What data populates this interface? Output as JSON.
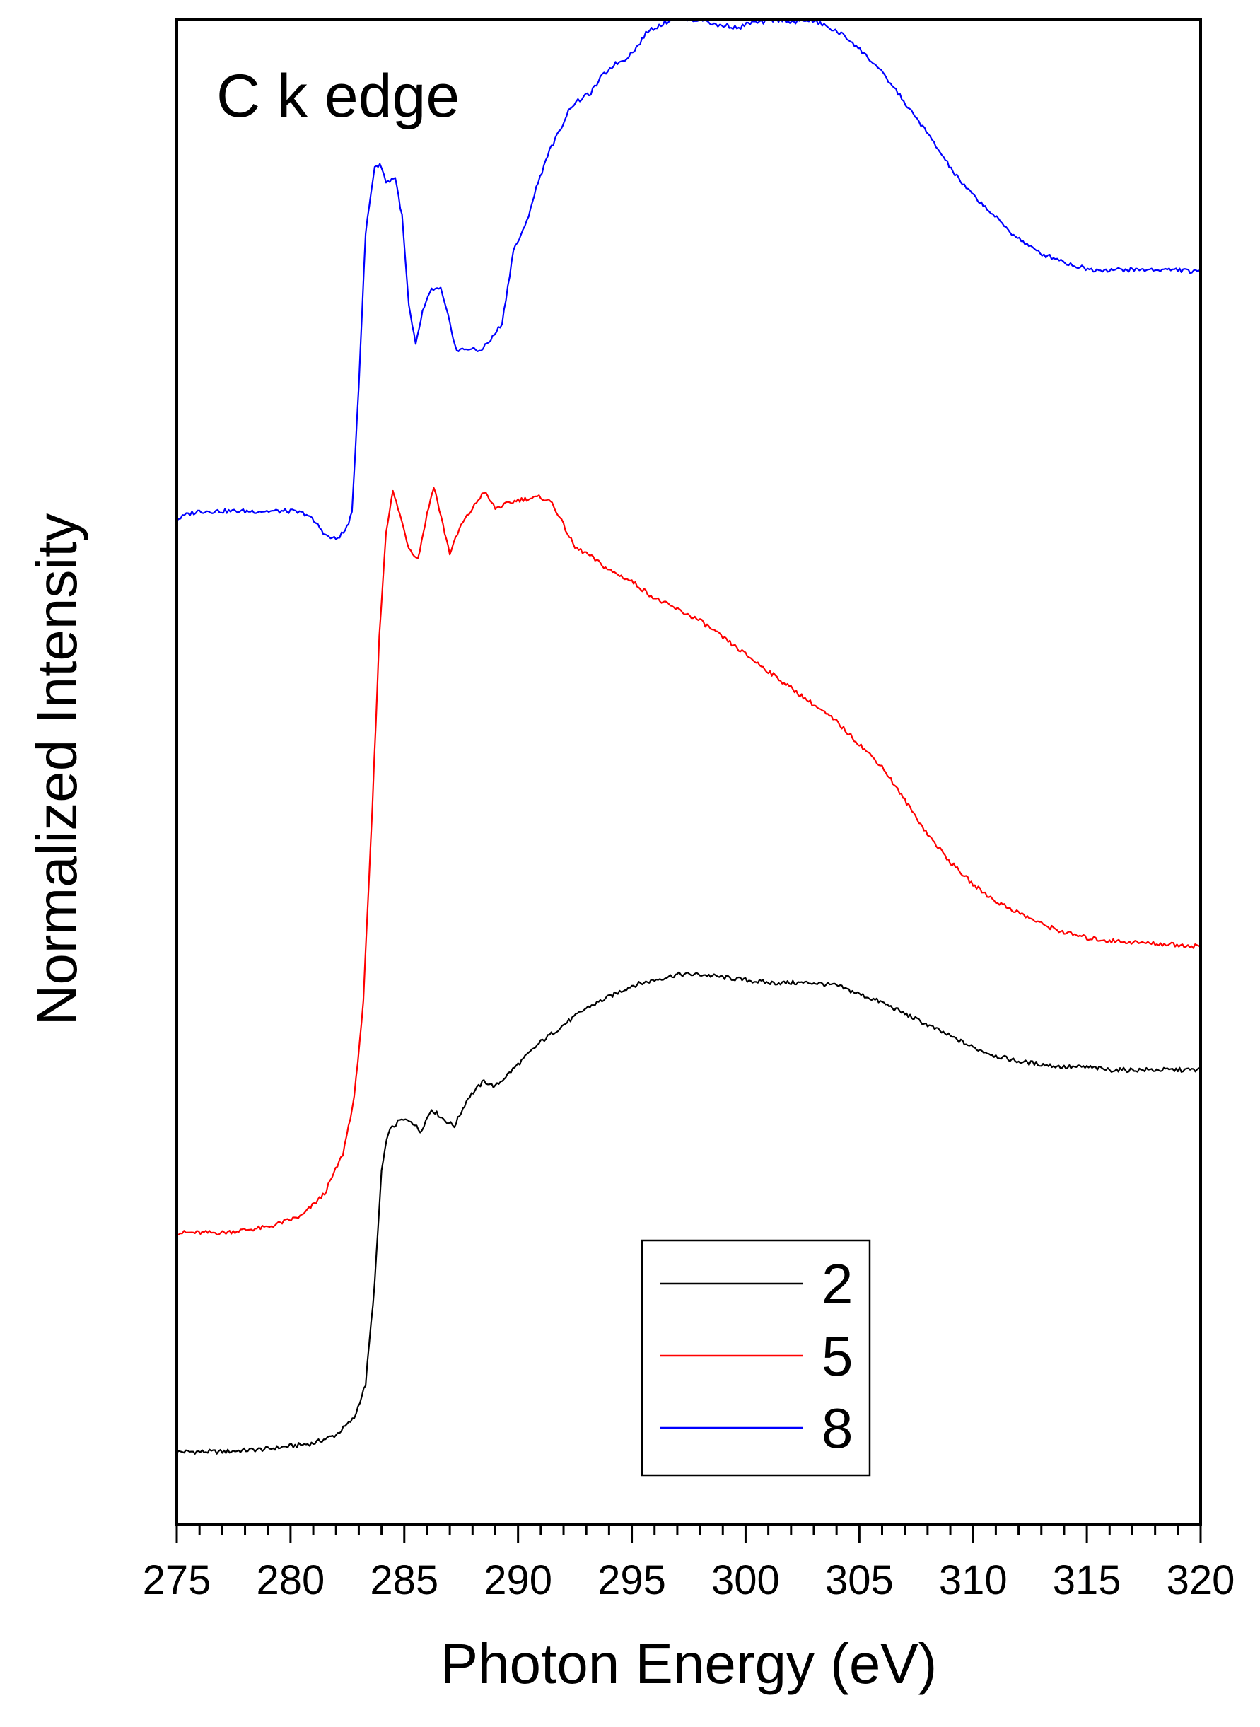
{
  "chart_data": {
    "type": "line",
    "annotation": "C k edge",
    "xlabel": "Photon Energy (eV)",
    "ylabel": "Normalized Intensity",
    "xlim": [
      275,
      320
    ],
    "ylim": [
      -0.08,
      2.6
    ],
    "x_ticks": [
      "275",
      "280",
      "285",
      "290",
      "295",
      "300",
      "305",
      "310",
      "315",
      "320"
    ],
    "y_ticks_shown": false,
    "grid": false,
    "legend_position": "bottom-right",
    "series": [
      {
        "name": "2",
        "color": "#000000",
        "points": [
          [
            275.0,
            0.05
          ],
          [
            277.0,
            0.05
          ],
          [
            279.0,
            0.055
          ],
          [
            281.0,
            0.065
          ],
          [
            282.0,
            0.08
          ],
          [
            282.8,
            0.11
          ],
          [
            283.3,
            0.17
          ],
          [
            283.7,
            0.35
          ],
          [
            284.0,
            0.55
          ],
          [
            284.3,
            0.62
          ],
          [
            284.8,
            0.64
          ],
          [
            285.3,
            0.64
          ],
          [
            285.7,
            0.62
          ],
          [
            286.2,
            0.66
          ],
          [
            286.8,
            0.64
          ],
          [
            287.2,
            0.63
          ],
          [
            287.8,
            0.68
          ],
          [
            288.5,
            0.71
          ],
          [
            289.0,
            0.7
          ],
          [
            290.0,
            0.74
          ],
          [
            291.0,
            0.78
          ],
          [
            292.0,
            0.81
          ],
          [
            293.0,
            0.84
          ],
          [
            294.0,
            0.86
          ],
          [
            295.0,
            0.88
          ],
          [
            296.0,
            0.89
          ],
          [
            297.0,
            0.9
          ],
          [
            298.0,
            0.9
          ],
          [
            299.0,
            0.895
          ],
          [
            300.0,
            0.89
          ],
          [
            301.0,
            0.885
          ],
          [
            302.0,
            0.885
          ],
          [
            303.0,
            0.885
          ],
          [
            304.0,
            0.88
          ],
          [
            305.0,
            0.865
          ],
          [
            306.0,
            0.85
          ],
          [
            307.0,
            0.83
          ],
          [
            308.0,
            0.81
          ],
          [
            309.0,
            0.79
          ],
          [
            310.0,
            0.77
          ],
          [
            311.0,
            0.755
          ],
          [
            312.0,
            0.745
          ],
          [
            313.0,
            0.74
          ],
          [
            314.0,
            0.735
          ],
          [
            315.0,
            0.735
          ],
          [
            316.0,
            0.73
          ],
          [
            317.0,
            0.73
          ],
          [
            318.0,
            0.73
          ],
          [
            319.0,
            0.73
          ],
          [
            320.0,
            0.73
          ]
        ]
      },
      {
        "name": "5",
        "color": "#ff0000",
        "points": [
          [
            275.0,
            0.44
          ],
          [
            277.0,
            0.44
          ],
          [
            279.0,
            0.45
          ],
          [
            280.5,
            0.47
          ],
          [
            281.5,
            0.51
          ],
          [
            282.3,
            0.58
          ],
          [
            282.8,
            0.68
          ],
          [
            283.2,
            0.85
          ],
          [
            283.6,
            1.2
          ],
          [
            283.9,
            1.5
          ],
          [
            284.2,
            1.69
          ],
          [
            284.5,
            1.76
          ],
          [
            284.8,
            1.72
          ],
          [
            285.2,
            1.66
          ],
          [
            285.6,
            1.64
          ],
          [
            286.0,
            1.72
          ],
          [
            286.3,
            1.77
          ],
          [
            286.7,
            1.7
          ],
          [
            287.0,
            1.65
          ],
          [
            287.5,
            1.7
          ],
          [
            288.0,
            1.73
          ],
          [
            288.5,
            1.76
          ],
          [
            289.0,
            1.73
          ],
          [
            290.0,
            1.745
          ],
          [
            291.0,
            1.75
          ],
          [
            291.5,
            1.74
          ],
          [
            292.0,
            1.7
          ],
          [
            292.5,
            1.66
          ],
          [
            293.0,
            1.65
          ],
          [
            294.0,
            1.62
          ],
          [
            295.0,
            1.6
          ],
          [
            296.0,
            1.57
          ],
          [
            297.0,
            1.55
          ],
          [
            298.0,
            1.53
          ],
          [
            299.0,
            1.5
          ],
          [
            300.0,
            1.47
          ],
          [
            301.0,
            1.44
          ],
          [
            302.0,
            1.41
          ],
          [
            303.0,
            1.38
          ],
          [
            304.0,
            1.35
          ],
          [
            305.0,
            1.31
          ],
          [
            306.0,
            1.27
          ],
          [
            307.0,
            1.21
          ],
          [
            308.0,
            1.15
          ],
          [
            309.0,
            1.1
          ],
          [
            310.0,
            1.06
          ],
          [
            311.0,
            1.03
          ],
          [
            312.0,
            1.01
          ],
          [
            313.0,
            0.99
          ],
          [
            314.0,
            0.975
          ],
          [
            315.0,
            0.965
          ],
          [
            316.0,
            0.96
          ],
          [
            318.0,
            0.955
          ],
          [
            320.0,
            0.95
          ]
        ]
      },
      {
        "name": "8",
        "color": "#0000ff",
        "points": [
          [
            275.0,
            1.71
          ],
          [
            275.5,
            1.72
          ],
          [
            276.0,
            1.725
          ],
          [
            278.0,
            1.725
          ],
          [
            280.0,
            1.725
          ],
          [
            280.7,
            1.72
          ],
          [
            281.2,
            1.7
          ],
          [
            281.6,
            1.68
          ],
          [
            282.0,
            1.675
          ],
          [
            282.4,
            1.69
          ],
          [
            282.7,
            1.72
          ],
          [
            283.0,
            1.95
          ],
          [
            283.3,
            2.22
          ],
          [
            283.7,
            2.34
          ],
          [
            284.0,
            2.34
          ],
          [
            284.2,
            2.31
          ],
          [
            284.6,
            2.32
          ],
          [
            284.9,
            2.25
          ],
          [
            285.2,
            2.09
          ],
          [
            285.5,
            2.02
          ],
          [
            285.8,
            2.08
          ],
          [
            286.2,
            2.12
          ],
          [
            286.6,
            2.12
          ],
          [
            287.0,
            2.06
          ],
          [
            287.3,
            2.01
          ],
          [
            287.8,
            2.015
          ],
          [
            288.3,
            2.01
          ],
          [
            288.8,
            2.03
          ],
          [
            289.3,
            2.06
          ],
          [
            289.8,
            2.19
          ],
          [
            290.3,
            2.23
          ],
          [
            290.8,
            2.3
          ],
          [
            291.3,
            2.36
          ],
          [
            291.8,
            2.4
          ],
          [
            292.3,
            2.445
          ],
          [
            292.8,
            2.46
          ],
          [
            293.2,
            2.47
          ],
          [
            293.7,
            2.5
          ],
          [
            294.2,
            2.52
          ],
          [
            294.7,
            2.53
          ],
          [
            295.2,
            2.55
          ],
          [
            295.7,
            2.58
          ],
          [
            296.2,
            2.59
          ],
          [
            296.7,
            2.6
          ],
          [
            297.2,
            2.605
          ],
          [
            297.7,
            2.6
          ],
          [
            298.2,
            2.6
          ],
          [
            298.7,
            2.59
          ],
          [
            299.2,
            2.59
          ],
          [
            299.7,
            2.585
          ],
          [
            300.2,
            2.595
          ],
          [
            300.7,
            2.595
          ],
          [
            301.2,
            2.6
          ],
          [
            301.7,
            2.6
          ],
          [
            302.2,
            2.595
          ],
          [
            302.7,
            2.6
          ],
          [
            303.2,
            2.595
          ],
          [
            303.7,
            2.585
          ],
          [
            304.2,
            2.575
          ],
          [
            304.7,
            2.56
          ],
          [
            305.2,
            2.54
          ],
          [
            305.7,
            2.52
          ],
          [
            306.2,
            2.495
          ],
          [
            306.7,
            2.47
          ],
          [
            307.2,
            2.44
          ],
          [
            307.7,
            2.415
          ],
          [
            308.2,
            2.385
          ],
          [
            308.7,
            2.355
          ],
          [
            309.2,
            2.325
          ],
          [
            309.7,
            2.3
          ],
          [
            310.2,
            2.28
          ],
          [
            310.7,
            2.26
          ],
          [
            311.2,
            2.24
          ],
          [
            311.7,
            2.22
          ],
          [
            312.2,
            2.205
          ],
          [
            312.7,
            2.19
          ],
          [
            313.2,
            2.18
          ],
          [
            313.7,
            2.175
          ],
          [
            314.2,
            2.165
          ],
          [
            314.7,
            2.16
          ],
          [
            315.2,
            2.155
          ],
          [
            316.0,
            2.155
          ],
          [
            317.0,
            2.155
          ],
          [
            318.0,
            2.155
          ],
          [
            319.0,
            2.155
          ],
          [
            320.0,
            2.15
          ]
        ]
      }
    ]
  }
}
